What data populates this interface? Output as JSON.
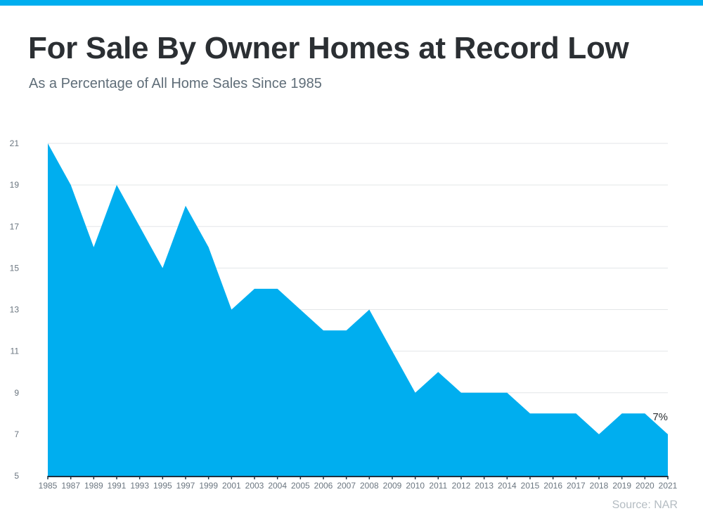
{
  "header": {
    "title": "For Sale By Owner Homes at Record Low",
    "subtitle": "As a Percentage of All Home Sales Since 1985"
  },
  "source": "Source: NAR",
  "colors": {
    "accent": "#00aeef",
    "area": "#00aeef",
    "axis": "#1f3040"
  },
  "chart_data": {
    "type": "area",
    "title": "For Sale By Owner Homes at Record Low",
    "subtitle": "As a Percentage of All Home Sales Since 1985",
    "xlabel": "",
    "ylabel": "",
    "categories": [
      "1985",
      "1987",
      "1989",
      "1991",
      "1993",
      "1995",
      "1997",
      "1999",
      "2001",
      "2003",
      "2004",
      "2005",
      "2006",
      "2007",
      "2008",
      "2009",
      "2010",
      "2011",
      "2012",
      "2013",
      "2014",
      "2015",
      "2016",
      "2017",
      "2018",
      "2019",
      "2020",
      "2021"
    ],
    "values": [
      21,
      19,
      16,
      19,
      17,
      15,
      18,
      16,
      13,
      14,
      14,
      13,
      12,
      12,
      13,
      11,
      9,
      10,
      9,
      9,
      9,
      8,
      8,
      8,
      7,
      8,
      8,
      7
    ],
    "ylim": [
      5,
      21
    ],
    "yticks": [
      5,
      7,
      9,
      11,
      13,
      15,
      17,
      19,
      21
    ],
    "grid": true,
    "annotations": [
      {
        "category": "2021",
        "text": "7%"
      }
    ]
  }
}
